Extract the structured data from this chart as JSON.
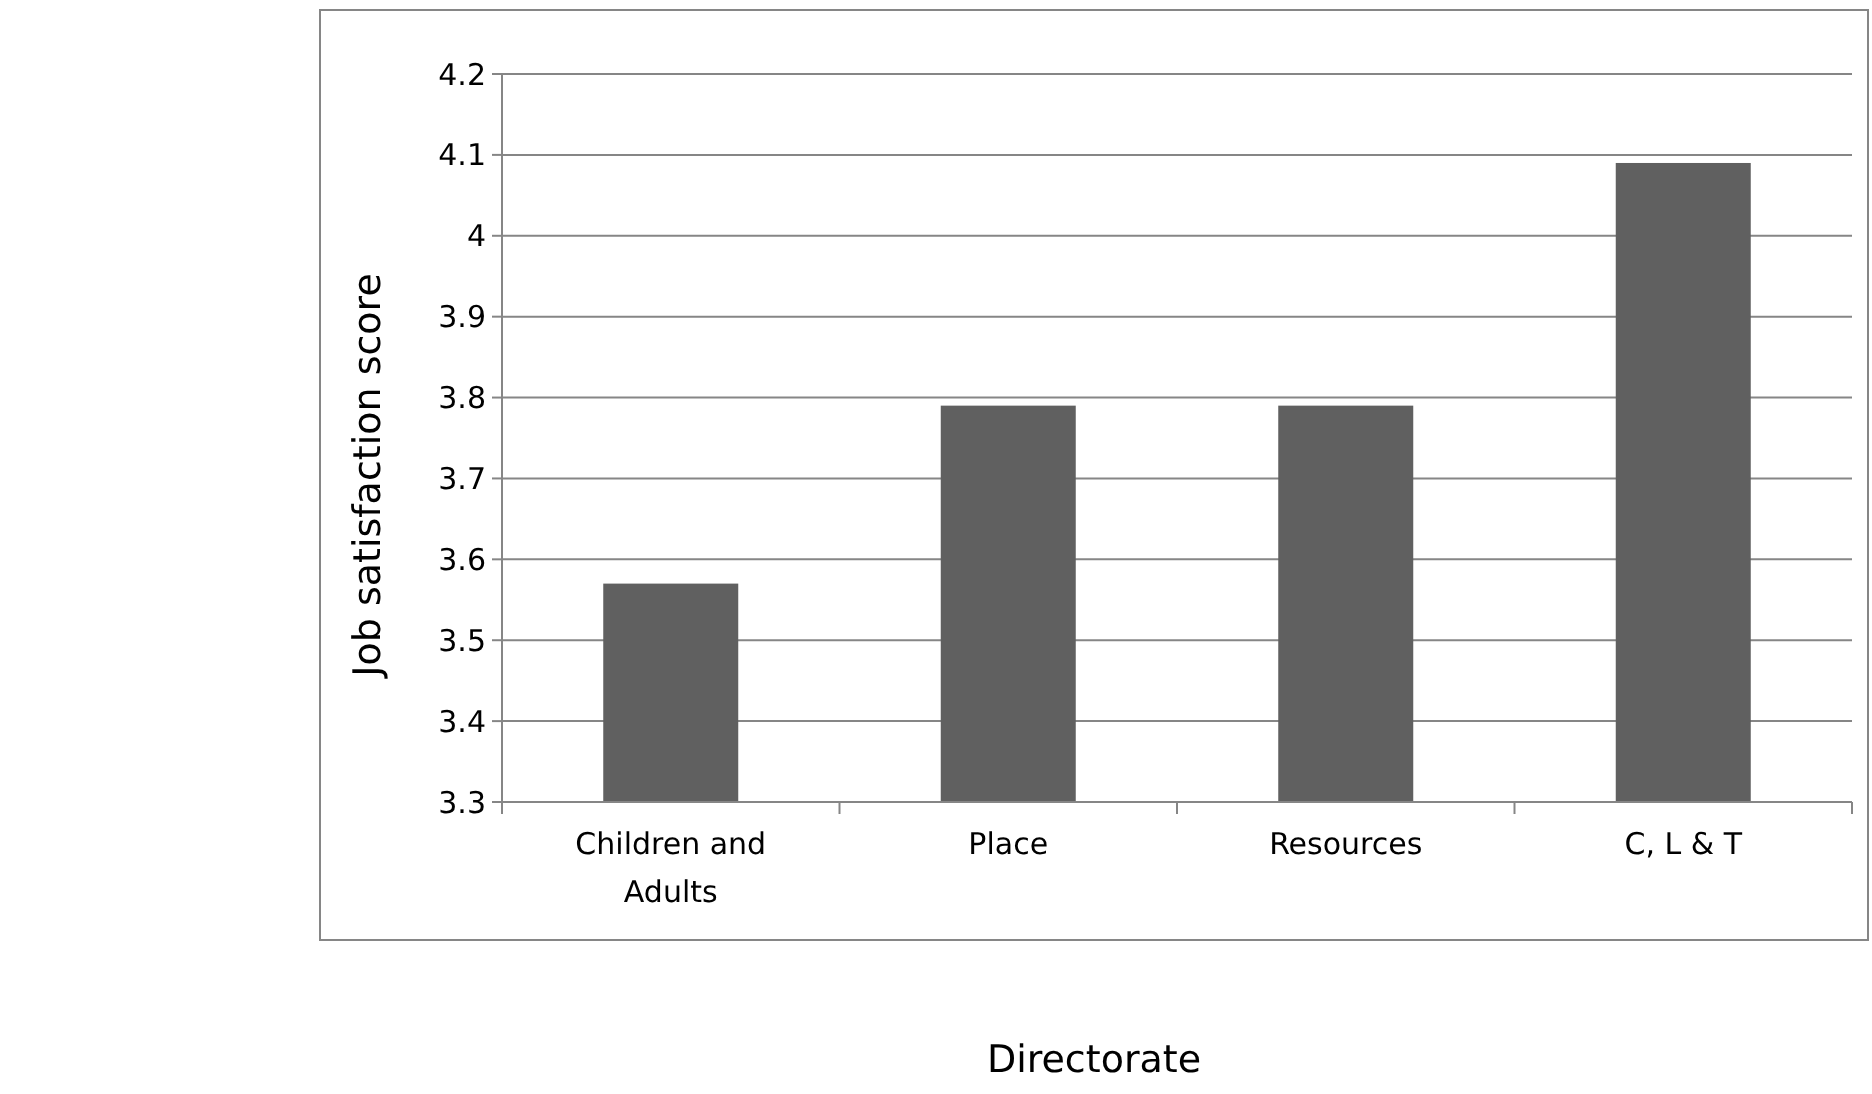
{
  "chart_data": {
    "type": "bar",
    "xlabel": "Directorate",
    "ylabel": "Job satisfaction score",
    "categories": [
      "Children and Adults",
      "Place",
      "Resources",
      "C, L & T"
    ],
    "values": [
      3.57,
      3.79,
      3.79,
      4.09
    ],
    "color": "#606060",
    "ylim": [
      3.3,
      4.2
    ],
    "yticks": [
      3.3,
      3.4,
      3.5,
      3.6,
      3.7,
      3.8,
      3.9,
      4,
      4.1,
      4.2
    ],
    "grid": "y"
  }
}
